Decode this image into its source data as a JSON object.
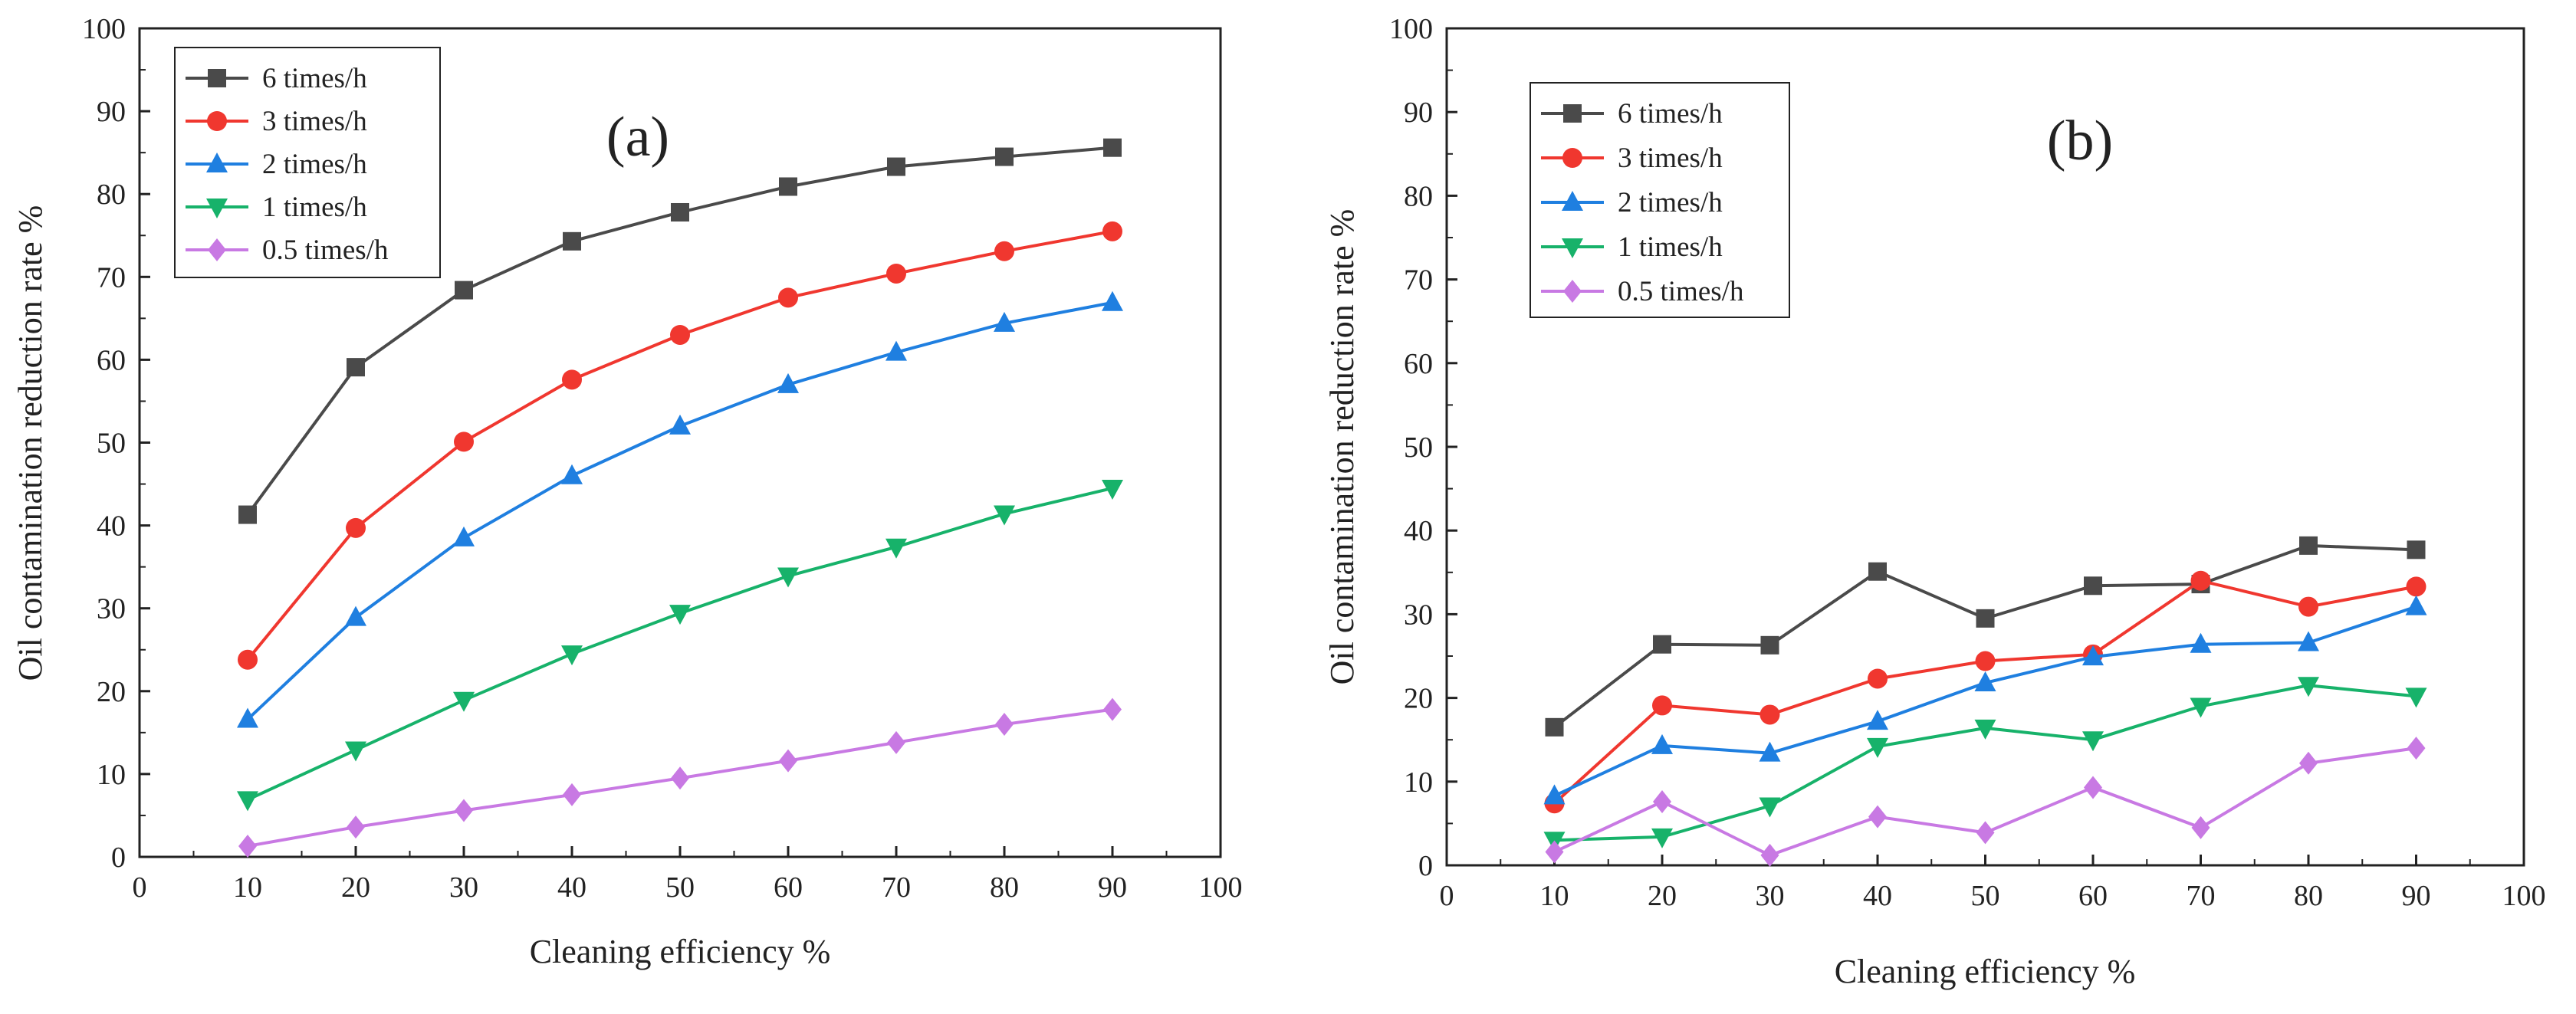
{
  "panels": [
    {
      "tag": "(a)",
      "xlabel": "Cleaning efficiency %",
      "ylabel": "Oil contamination reduction rate %"
    },
    {
      "tag": "(b)",
      "xlabel": "Cleaning efficiency %",
      "ylabel": "Oil contamination reduction rate %"
    }
  ],
  "chart_data": [
    {
      "type": "line",
      "title": "(a)",
      "xlabel": "Cleaning efficiency %",
      "ylabel": "Oil contamination reduction rate %",
      "xlim": [
        0,
        100
      ],
      "ylim": [
        0,
        100
      ],
      "xticks": [
        "0",
        "10",
        "20",
        "30",
        "40",
        "50",
        "60",
        "70",
        "80",
        "90",
        "100"
      ],
      "yticks": [
        "0",
        "10",
        "20",
        "30",
        "40",
        "50",
        "60",
        "70",
        "80",
        "90",
        "100"
      ],
      "legend_position": "top-left",
      "grid": false,
      "x": [
        10,
        20,
        30,
        40,
        50,
        60,
        70,
        80,
        90
      ],
      "series": [
        {
          "name": "6 times/h",
          "color": "#4a4a4a",
          "marker": "square",
          "values": [
            41.3,
            59.1,
            68.4,
            74.3,
            77.8,
            80.9,
            83.3,
            84.5,
            85.6
          ]
        },
        {
          "name": "3 times/h",
          "color": "#f0372f",
          "marker": "circle",
          "values": [
            23.8,
            39.7,
            50.1,
            57.6,
            63.0,
            67.5,
            70.4,
            73.1,
            75.5
          ]
        },
        {
          "name": "2 times/h",
          "color": "#1f7fe0",
          "marker": "triangle-up",
          "values": [
            16.6,
            28.9,
            38.5,
            46.0,
            52.0,
            57.0,
            60.9,
            64.4,
            66.9
          ]
        },
        {
          "name": "1 times/h",
          "color": "#17b26a",
          "marker": "triangle-down",
          "values": [
            6.9,
            12.9,
            18.9,
            24.5,
            29.4,
            33.9,
            37.4,
            41.4,
            44.5
          ]
        },
        {
          "name": "0.5 times/h",
          "color": "#c879e3",
          "marker": "diamond",
          "values": [
            1.3,
            3.6,
            5.6,
            7.5,
            9.5,
            11.6,
            13.8,
            16.0,
            17.8
          ]
        }
      ]
    },
    {
      "type": "line",
      "title": "(b)",
      "xlabel": "Cleaning efficiency %",
      "ylabel": "Oil contamination reduction rate %",
      "xlim": [
        0,
        100
      ],
      "ylim": [
        0,
        100
      ],
      "xticks": [
        "0",
        "10",
        "20",
        "30",
        "40",
        "50",
        "60",
        "70",
        "80",
        "90",
        "100"
      ],
      "yticks": [
        "0",
        "10",
        "20",
        "30",
        "40",
        "50",
        "60",
        "70",
        "80",
        "90",
        "100"
      ],
      "legend_position": "top-left",
      "grid": false,
      "x": [
        10,
        20,
        30,
        40,
        50,
        60,
        70,
        80,
        90
      ],
      "series": [
        {
          "name": "6 times/h",
          "color": "#4a4a4a",
          "marker": "square",
          "values": [
            16.5,
            26.4,
            26.3,
            35.1,
            29.5,
            33.4,
            33.6,
            38.2,
            37.7
          ]
        },
        {
          "name": "3 times/h",
          "color": "#f0372f",
          "marker": "circle",
          "values": [
            7.4,
            19.1,
            18.0,
            22.3,
            24.4,
            25.2,
            34.0,
            30.9,
            33.3
          ]
        },
        {
          "name": "2 times/h",
          "color": "#1f7fe0",
          "marker": "triangle-up",
          "values": [
            8.3,
            14.3,
            13.4,
            17.2,
            21.8,
            24.9,
            26.4,
            26.6,
            30.9
          ]
        },
        {
          "name": "1 times/h",
          "color": "#17b26a",
          "marker": "triangle-down",
          "values": [
            3.0,
            3.4,
            7.1,
            14.2,
            16.4,
            15.0,
            19.0,
            21.5,
            20.2
          ]
        },
        {
          "name": "0.5 times/h",
          "color": "#c879e3",
          "marker": "diamond",
          "values": [
            1.6,
            7.6,
            1.2,
            5.8,
            3.9,
            9.3,
            4.5,
            12.2,
            14.0
          ]
        }
      ]
    }
  ]
}
